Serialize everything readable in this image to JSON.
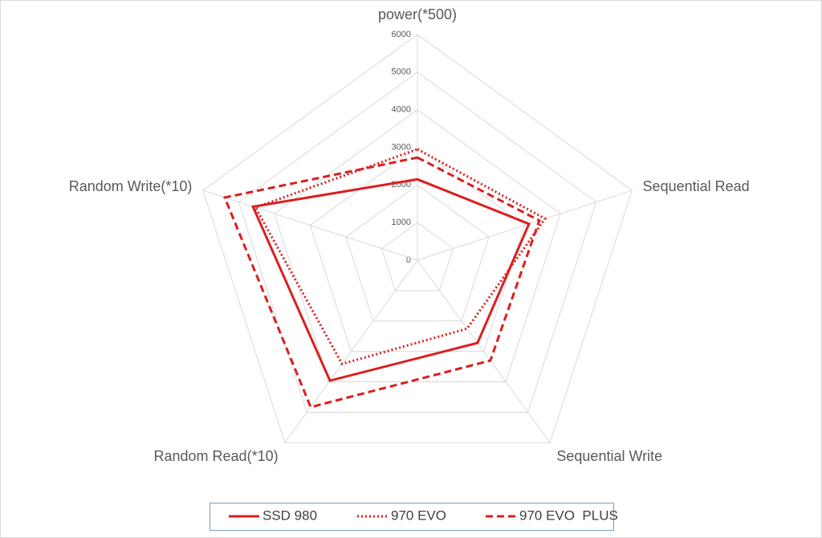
{
  "chart_data": {
    "type": "radar",
    "categories": [
      "power(*500)",
      "Sequential Read",
      "Sequential Write",
      "Random Read(*10)",
      "Random Write(*10)"
    ],
    "series": [
      {
        "name": "SSD 980",
        "color": "#dc1e1e",
        "dash": "solid",
        "values": [
          2150,
          3120,
          2720,
          3960,
          4600
        ]
      },
      {
        "name": "970 EVO",
        "color": "#dc1e1e",
        "dash": "dotted",
        "values": [
          2950,
          3570,
          2250,
          3410,
          4530
        ]
      },
      {
        "name": "970 EVO  PLUS",
        "color": "#dc1e1e",
        "dash": "dashed",
        "values": [
          2730,
          3410,
          3300,
          4830,
          5390
        ]
      }
    ],
    "ylim": [
      0,
      6000
    ],
    "yticks": [
      0,
      1000,
      2000,
      3000,
      4000,
      5000,
      6000
    ],
    "grid": true,
    "legend": "bottom"
  }
}
